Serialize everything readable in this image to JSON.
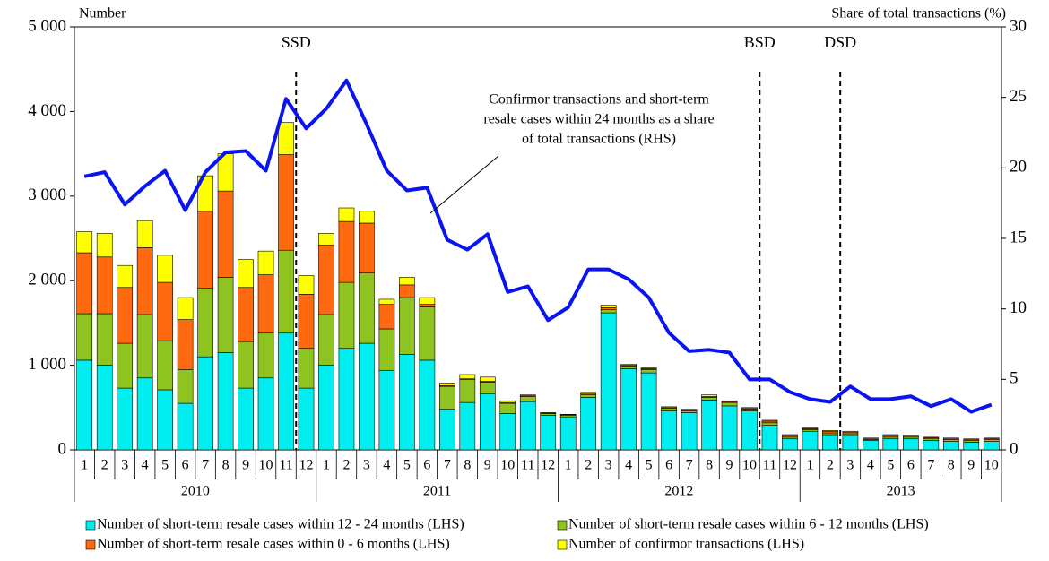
{
  "chart_data": {
    "type": "bar",
    "y_label": "Number",
    "y2_label": "Share of total transactions (%)",
    "categories": [
      "1",
      "2",
      "3",
      "4",
      "5",
      "6",
      "7",
      "8",
      "9",
      "10",
      "11",
      "12",
      "1",
      "2",
      "3",
      "4",
      "5",
      "6",
      "7",
      "8",
      "9",
      "10",
      "11",
      "12",
      "1",
      "2",
      "3",
      "4",
      "5",
      "6",
      "7",
      "8",
      "9",
      "10",
      "11",
      "12",
      "1",
      "2",
      "3",
      "4",
      "5",
      "6",
      "7",
      "8",
      "9",
      "10"
    ],
    "years": [
      "2010",
      "2011",
      "2012",
      "2013"
    ],
    "ylim": [
      0,
      5000
    ],
    "yticks": [
      0,
      {
        "value": 1000,
        "label": "1 000"
      },
      {
        "value": 2000,
        "label": "2 000"
      },
      {
        "value": 3000,
        "label": "3 000"
      },
      {
        "value": 4000,
        "label": "4 000"
      },
      {
        "value": 5000,
        "label": "5 000"
      }
    ],
    "y2lim": [
      0,
      30
    ],
    "y2ticks": [
      0,
      5,
      10,
      15,
      20,
      25,
      30
    ],
    "series": [
      {
        "name": "Number of short-term resale cases within 12 - 24 months (LHS)",
        "color": "#00eef0",
        "values": [
          1060,
          1000,
          730,
          850,
          710,
          550,
          1100,
          1150,
          730,
          850,
          1380,
          730,
          1000,
          1200,
          1260,
          940,
          1130,
          1060,
          480,
          560,
          660,
          430,
          570,
          410,
          390,
          620,
          1620,
          960,
          910,
          460,
          440,
          590,
          520,
          460,
          290,
          130,
          220,
          180,
          170,
          110,
          130,
          130,
          110,
          100,
          90,
          100
        ]
      },
      {
        "name": "Number of short-term resale cases within 6 - 12 months (LHS)",
        "color": "#8fc31f",
        "values": [
          550,
          610,
          530,
          750,
          580,
          400,
          810,
          890,
          550,
          530,
          980,
          470,
          600,
          780,
          830,
          490,
          670,
          630,
          270,
          270,
          140,
          120,
          60,
          20,
          20,
          30,
          40,
          30,
          40,
          30,
          20,
          30,
          40,
          20,
          30,
          20,
          20,
          20,
          20,
          10,
          20,
          20,
          20,
          20,
          20,
          20
        ]
      },
      {
        "name": "Number of short-term resale cases within 0 - 6 months (LHS)",
        "color": "#ff6a10",
        "values": [
          720,
          670,
          660,
          790,
          690,
          590,
          910,
          1020,
          640,
          690,
          1130,
          640,
          820,
          720,
          590,
          290,
          150,
          30,
          10,
          10,
          10,
          10,
          10,
          5,
          5,
          10,
          20,
          10,
          10,
          10,
          10,
          10,
          10,
          10,
          20,
          20,
          10,
          20,
          20,
          10,
          20,
          15,
          15,
          10,
          15,
          15
        ]
      },
      {
        "name": "Number of confirmor transactions (LHS)",
        "color": "#ffff00",
        "values": [
          250,
          280,
          260,
          320,
          320,
          260,
          420,
          440,
          330,
          280,
          380,
          220,
          140,
          160,
          140,
          60,
          90,
          80,
          30,
          50,
          50,
          20,
          10,
          5,
          5,
          20,
          30,
          10,
          10,
          10,
          10,
          20,
          10,
          10,
          10,
          10,
          10,
          10,
          10,
          10,
          10,
          10,
          5,
          10,
          5,
          5
        ]
      }
    ],
    "line": {
      "axis": "y2",
      "color": "#0a14f0",
      "annotation": [
        "Confirmor transactions and short-term",
        "resale cases within 24 months as a share",
        "of total transactions (RHS)"
      ],
      "values": [
        19.4,
        19.7,
        17.4,
        18.7,
        19.8,
        17.0,
        19.7,
        21.1,
        21.2,
        19.8,
        24.9,
        22.8,
        24.2,
        26.2,
        23.1,
        19.8,
        18.4,
        18.6,
        14.9,
        14.2,
        15.3,
        11.2,
        11.6,
        9.2,
        10.1,
        12.8,
        12.8,
        12.1,
        10.8,
        8.3,
        7.0,
        7.1,
        6.9,
        5.0,
        5.0,
        4.1,
        3.6,
        3.4,
        4.5,
        3.6,
        3.6,
        3.8,
        3.1,
        3.6,
        2.7,
        3.2
      ]
    },
    "events": [
      {
        "label": "SSD",
        "after": 10
      },
      {
        "label": "BSD",
        "after": 33
      },
      {
        "label": "DSD",
        "after": 37
      }
    ]
  }
}
